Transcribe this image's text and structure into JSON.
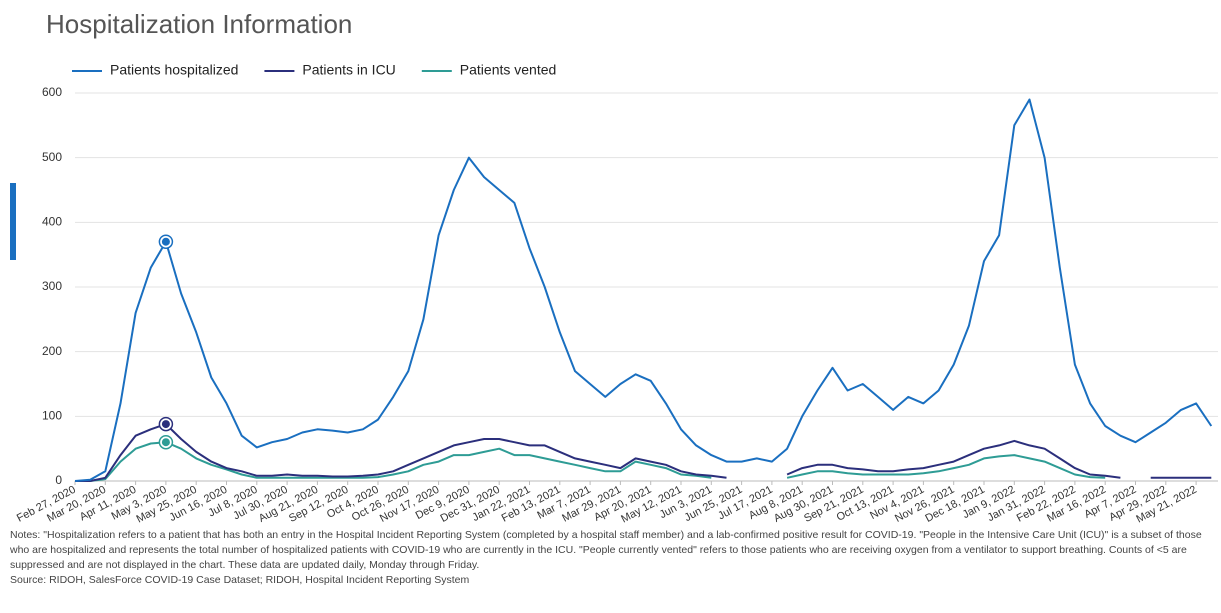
{
  "chart_data": {
    "type": "line",
    "title": "Hospitalization Information",
    "categories": [
      "Feb 27, 2020",
      null,
      "Mar 20, 2020",
      null,
      "Apr 11, 2020",
      null,
      "May 3, 2020",
      null,
      "May 25, 2020",
      null,
      "Jun 16, 2020",
      null,
      "Jul 8, 2020",
      null,
      "Jul 30, 2020",
      null,
      "Aug 21, 2020",
      null,
      "Sep 12, 2020",
      null,
      "Oct 4, 2020",
      null,
      "Oct 26, 2020",
      null,
      "Nov 17, 2020",
      null,
      "Dec 9, 2020",
      null,
      "Dec 31, 2020",
      null,
      "Jan 22, 2021",
      null,
      "Feb 13, 2021",
      null,
      "Mar 7, 2021",
      null,
      "Mar 29, 2021",
      null,
      "Apr 20, 2021",
      null,
      "May 12, 2021",
      null,
      "Jun 3, 2021",
      null,
      "Jun 25, 2021",
      null,
      "Jul 17, 2021",
      null,
      "Aug 8, 2021",
      null,
      "Aug 30, 2021",
      null,
      "Sep 21, 2021",
      null,
      "Oct 13, 2021",
      null,
      "Nov 4, 2021",
      null,
      "Nov 26, 2021",
      null,
      "Dec 18, 2021",
      null,
      "Jan 9, 2022",
      null,
      "Jan 31, 2022",
      null,
      "Feb 22, 2022",
      null,
      "Mar 16, 2022",
      null,
      "Apr 7, 2022",
      null,
      "Apr 29, 2022",
      null,
      "May 21, 2022",
      null
    ],
    "series": [
      {
        "name": "Patients hospitalized",
        "color": "#1a6fc0",
        "values": [
          0,
          2,
          15,
          120,
          260,
          330,
          370,
          290,
          230,
          160,
          120,
          70,
          52,
          60,
          65,
          75,
          80,
          78,
          75,
          80,
          95,
          130,
          170,
          250,
          380,
          450,
          500,
          470,
          450,
          430,
          360,
          300,
          230,
          170,
          150,
          130,
          150,
          165,
          155,
          120,
          80,
          55,
          40,
          30,
          30,
          35,
          30,
          50,
          100,
          140,
          175,
          140,
          150,
          130,
          110,
          130,
          120,
          140,
          180,
          240,
          340,
          380,
          550,
          590,
          500,
          330,
          180,
          120,
          85,
          70,
          60,
          75,
          90,
          110,
          120,
          85
        ]
      },
      {
        "name": "Patients in ICU",
        "color": "#2b2f7c",
        "values": [
          0,
          0,
          5,
          40,
          70,
          80,
          88,
          65,
          45,
          30,
          20,
          15,
          8,
          8,
          10,
          8,
          8,
          7,
          7,
          8,
          10,
          15,
          25,
          35,
          45,
          55,
          60,
          65,
          65,
          60,
          55,
          55,
          45,
          35,
          30,
          25,
          20,
          35,
          30,
          25,
          15,
          10,
          8,
          5,
          null,
          null,
          null,
          10,
          20,
          25,
          25,
          20,
          18,
          15,
          15,
          18,
          20,
          25,
          30,
          40,
          50,
          55,
          62,
          55,
          50,
          35,
          20,
          10,
          8,
          5,
          null,
          5,
          5,
          5,
          5,
          5
        ]
      },
      {
        "name": "Patients vented",
        "color": "#2e9c95",
        "values": [
          0,
          0,
          3,
          30,
          50,
          58,
          60,
          50,
          35,
          25,
          18,
          10,
          5,
          5,
          5,
          5,
          5,
          5,
          5,
          5,
          6,
          10,
          15,
          25,
          30,
          40,
          40,
          45,
          50,
          40,
          40,
          35,
          30,
          25,
          20,
          15,
          15,
          30,
          25,
          20,
          10,
          8,
          5,
          null,
          null,
          null,
          null,
          5,
          10,
          15,
          15,
          12,
          10,
          10,
          10,
          10,
          12,
          15,
          20,
          25,
          35,
          38,
          40,
          35,
          30,
          20,
          10,
          6,
          5,
          null,
          null,
          null,
          null,
          null,
          null,
          null
        ]
      }
    ],
    "ylim": [
      0,
      600
    ],
    "yticks": [
      0,
      100,
      200,
      300,
      400,
      500,
      600
    ],
    "grid": true,
    "notes": "Notes: \"Hospitalization refers to a patient that has both an entry in the Hospital Incident Reporting System (completed by a hospital staff member) and a lab-confirmed positive result for COVID-19. \"People in the Intensive Care Unit (ICU)\" is a subset of those who are hospitalized and represents the total number of hospitalized patients with COVID-19 who are currently in the ICU. \"People currently vented\" refers to those patients who are receiving oxygen from a ventilator to support breathing. Counts of <5 are suppressed and are not displayed in the chart. These data are updated daily, Monday through Friday.",
    "source": "Source: RIDOH, SalesForce COVID-19 Case Dataset; RIDOH, Hospital Incident Reporting System"
  }
}
